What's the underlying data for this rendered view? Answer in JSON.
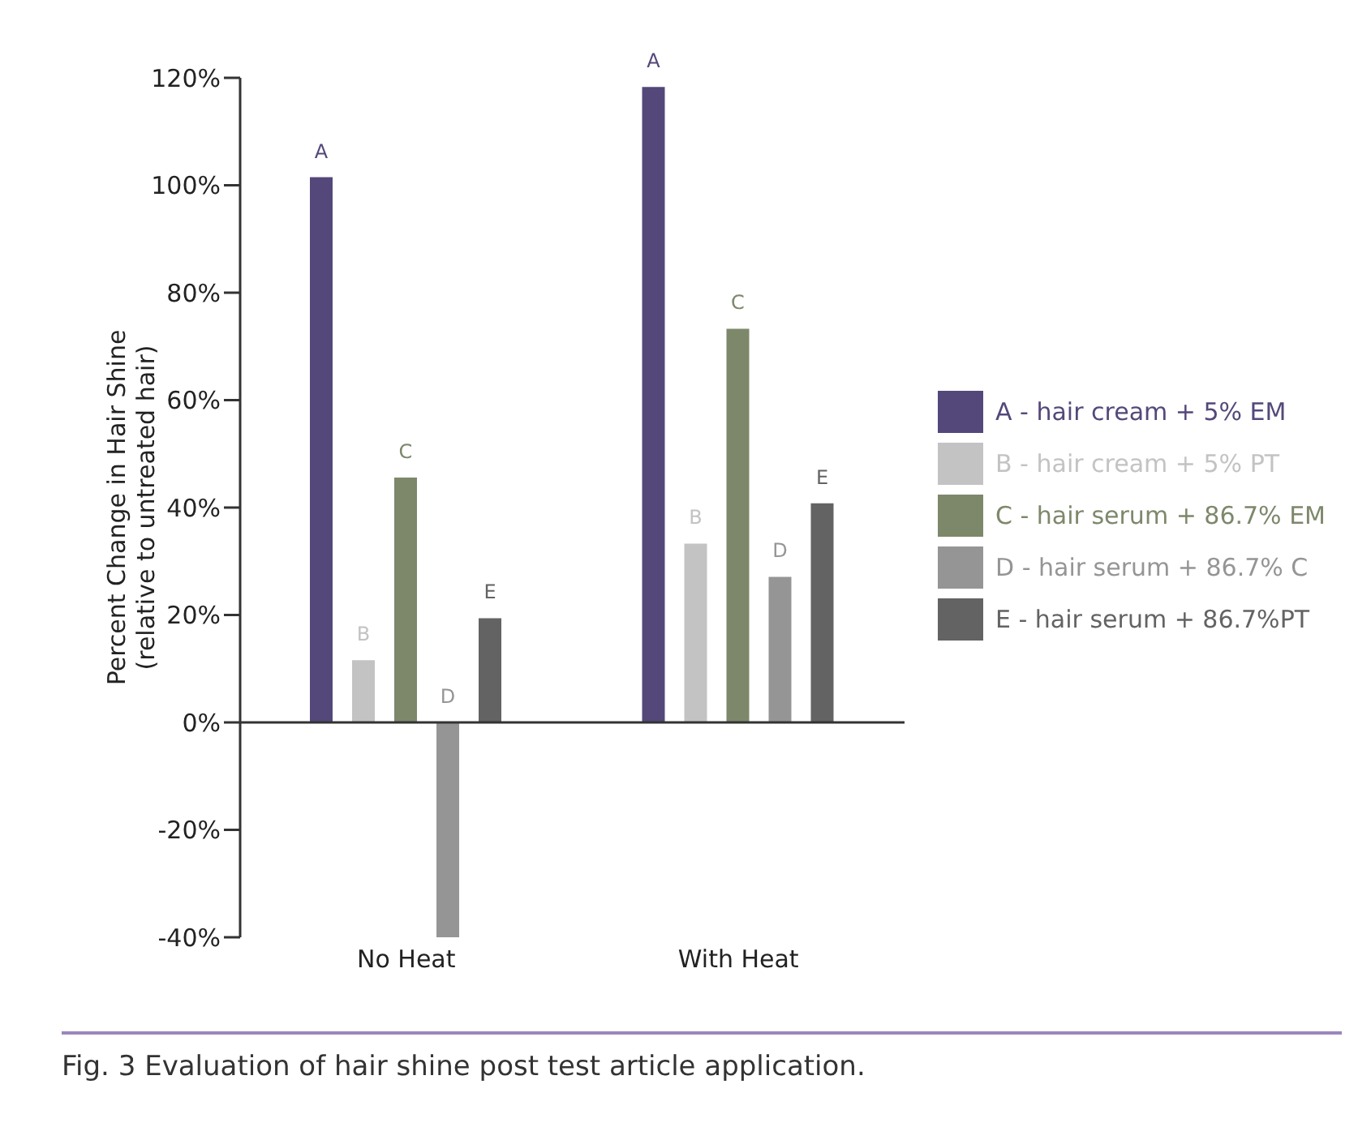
{
  "chart_data": {
    "type": "bar",
    "ylabel": "Percent Change in Hair Shine\n(relative to untreated hair)",
    "categories": [
      "No Heat",
      "With Heat"
    ],
    "series": [
      {
        "name": "A - hair cream + 5% EM",
        "color": "#54487a",
        "values": [
          101.5,
          118.3
        ],
        "value_labels": [
          "A",
          "A"
        ]
      },
      {
        "name": "B - hair cream + 5% PT",
        "color": "#c3c3c3",
        "values": [
          11.6,
          33.3
        ],
        "value_labels": [
          "B",
          "B"
        ]
      },
      {
        "name": "C - hair serum + 86.7% EM",
        "color": "#7d886b",
        "values": [
          45.6,
          73.3
        ],
        "value_labels": [
          "C",
          "C"
        ]
      },
      {
        "name": "D - hair serum + 86.7% C",
        "color": "#959595",
        "values": [
          -40,
          27.1
        ],
        "value_labels": [
          "D",
          "D"
        ]
      },
      {
        "name": "E - hair serum + 86.7%PT",
        "color": "#636363",
        "values": [
          19.4,
          40.8
        ],
        "value_labels": [
          "E",
          "E"
        ]
      }
    ],
    "ylim": [
      -40,
      120
    ],
    "yticks": [
      {
        "value": -40,
        "label": "-40%"
      },
      {
        "value": -20,
        "label": "-20%"
      },
      {
        "value": 0,
        "label": "0%"
      },
      {
        "value": 20,
        "label": "20%"
      },
      {
        "value": 40,
        "label": "40%"
      },
      {
        "value": 60,
        "label": "60%"
      },
      {
        "value": 80,
        "label": "80%"
      },
      {
        "value": 100,
        "label": "100%"
      },
      {
        "value": 120,
        "label": "120%"
      }
    ],
    "legend": "right",
    "annotations": [
      "Fig. 3 Evaluation of hair shine post test article application."
    ]
  }
}
